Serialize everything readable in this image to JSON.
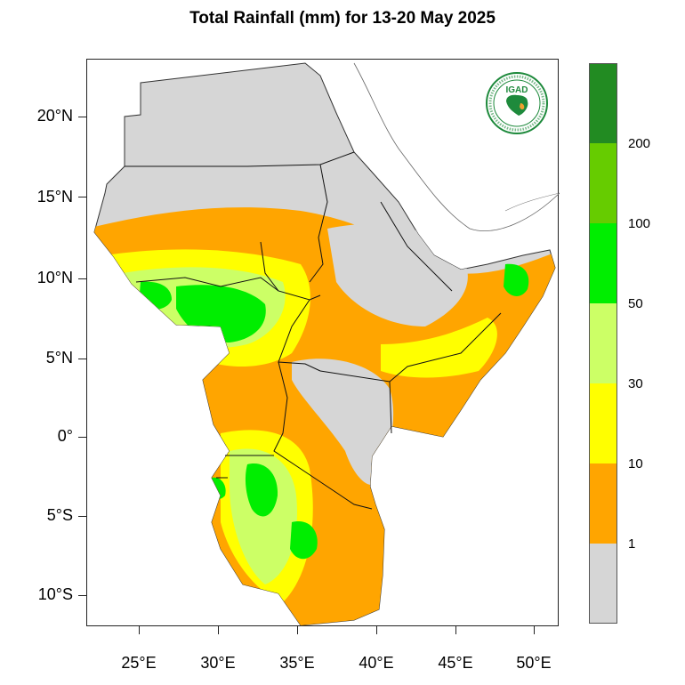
{
  "title": "Total Rainfall (mm) for 13-20 May 2025",
  "logo": {
    "text": "IGAD",
    "ring_text": "INTERGOVERNMENTAL AUTHORITY ON DEVELOPMENT",
    "color": "#1e8a3c"
  },
  "map": {
    "land_background": "#d6d6d6",
    "border_color": "#111111",
    "lat_labels": [
      "20°N",
      "15°N",
      "10°N",
      "5°N",
      "0°",
      "5°S",
      "10°S"
    ],
    "lon_labels": [
      "25°E",
      "30°E",
      "35°E",
      "40°E",
      "45°E",
      "50°E"
    ]
  },
  "legend": {
    "segments": [
      {
        "color": "#d6d6d6"
      },
      {
        "color": "#ffa500"
      },
      {
        "color": "#ffff00"
      },
      {
        "color": "#ccff66"
      },
      {
        "color": "#00ee00"
      },
      {
        "color": "#66cc00"
      },
      {
        "color": "#228b22"
      }
    ],
    "labels": [
      "1",
      "10",
      "30",
      "50",
      "100",
      "200"
    ]
  }
}
